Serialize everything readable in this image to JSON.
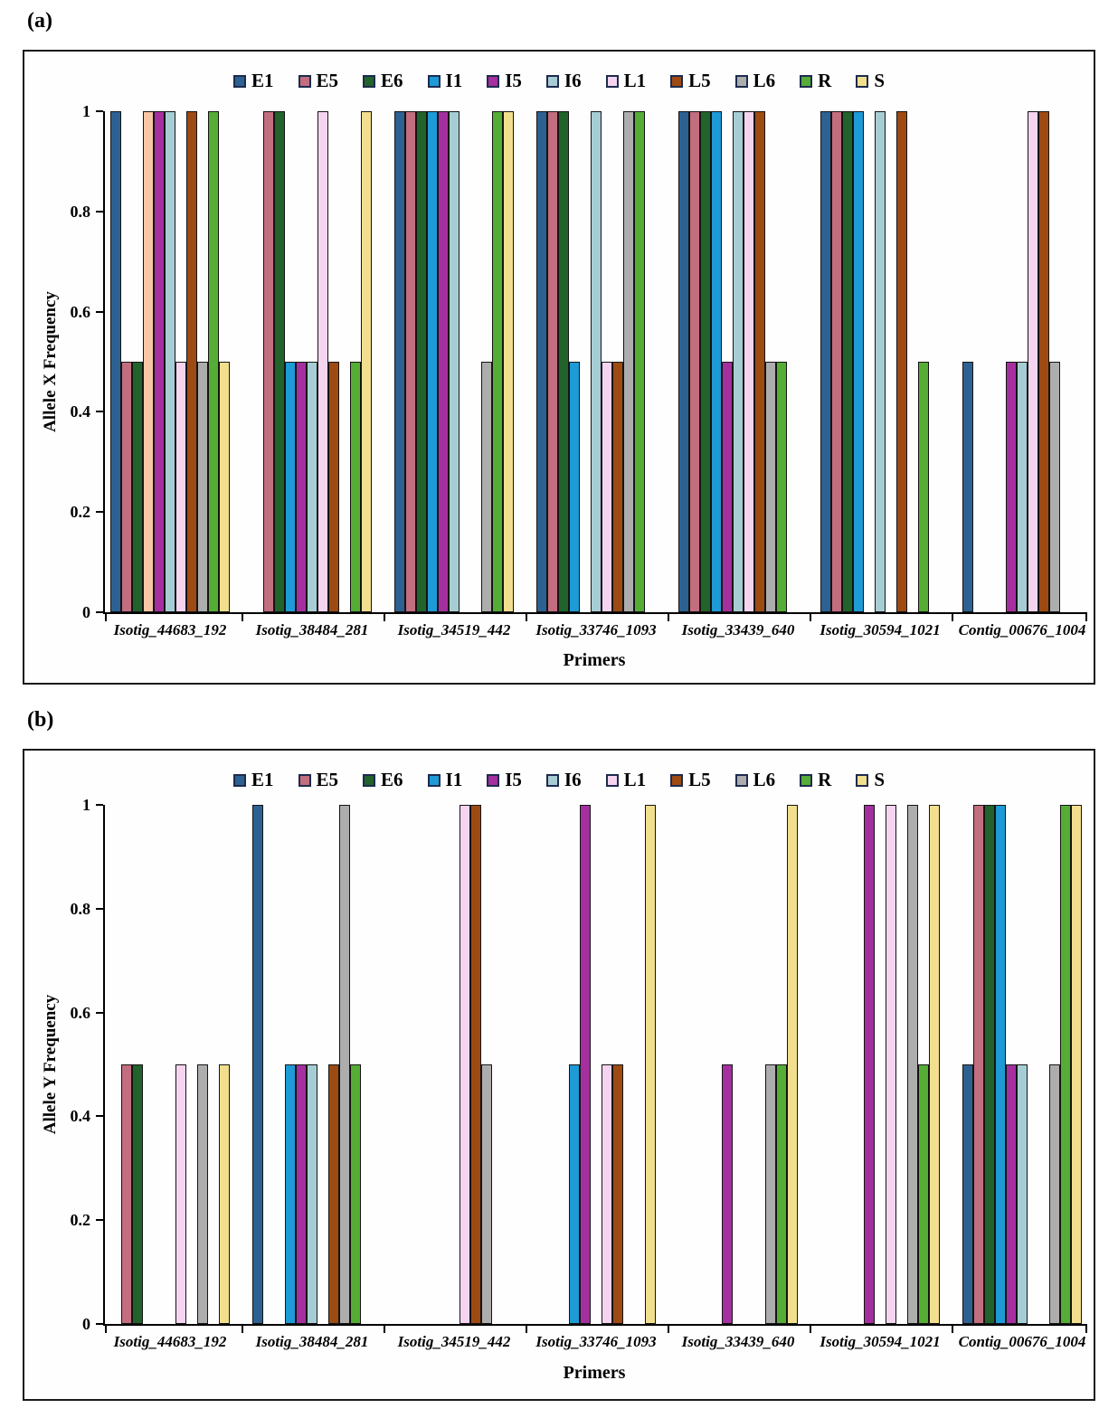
{
  "chart_data": [
    {
      "type": "bar",
      "panel_label": "(a)",
      "xlabel": "Primers",
      "ylabel": "Allele X Frequency",
      "ylim": [
        0,
        1
      ],
      "y_ticks": [
        "0",
        "0.2",
        "0.4",
        "0.6",
        "0.8",
        "1"
      ],
      "grid": false,
      "legend_position": "top",
      "categories": [
        "Isotig_44683_192",
        "Isotig_38484_281",
        "Isotig_34519_442",
        "Isotig_33746_1093",
        "Isotig_33439_640",
        "Isotig_30594_1021",
        "Contig_00676_1004"
      ],
      "series": [
        {
          "name": "E1",
          "color": "#2D6191",
          "values": [
            1,
            0,
            1,
            1,
            1,
            1,
            0.5
          ]
        },
        {
          "name": "E5",
          "color": "#C26E7F",
          "values": [
            0.5,
            1,
            1,
            1,
            1,
            1,
            0
          ]
        },
        {
          "name": "E6",
          "color": "#21632B",
          "values": [
            0.5,
            1,
            1,
            1,
            1,
            1,
            0
          ]
        },
        {
          "name": "I1",
          "color": "#1E9AD6",
          "values": [
            1,
            0.5,
            1,
            0.5,
            1,
            1,
            0
          ]
        },
        {
          "name": "I5",
          "color": "#A52F9E",
          "values": [
            1,
            0.5,
            1,
            0,
            0.5,
            0,
            0.5
          ]
        },
        {
          "name": "I6",
          "color": "#A7CDD4",
          "values": [
            1,
            0.5,
            1,
            1,
            1,
            1,
            0.5
          ]
        },
        {
          "name": "L1",
          "color": "#F5D4F0",
          "values": [
            0.5,
            1,
            0,
            0.5,
            1,
            0,
            1
          ]
        },
        {
          "name": "L5",
          "color": "#9D4A13",
          "values": [
            1,
            0.5,
            0,
            0.5,
            1,
            1,
            1
          ]
        },
        {
          "name": "L6",
          "color": "#ADADAD",
          "values": [
            0.5,
            0,
            0.5,
            1,
            0.5,
            0,
            0.5
          ]
        },
        {
          "name": "R",
          "color": "#55AD36",
          "values": [
            1,
            0.5,
            1,
            1,
            0.5,
            0.5,
            0
          ]
        },
        {
          "name": "S",
          "color": "#F1DF8E",
          "values": [
            0.5,
            1,
            1,
            0,
            0,
            0,
            0
          ]
        }
      ],
      "bar_color_overrides": [
        {
          "series": "I1",
          "category": "Isotig_44683_192",
          "color": "#F7C6A4"
        }
      ]
    },
    {
      "type": "bar",
      "panel_label": "(b)",
      "xlabel": "Primers",
      "ylabel": "Allele Y Frequency",
      "ylim": [
        0,
        1
      ],
      "y_ticks": [
        "0",
        "0.2",
        "0.4",
        "0.6",
        "0.8",
        "1"
      ],
      "grid": false,
      "legend_position": "top",
      "categories": [
        "Isotig_44683_192",
        "Isotig_38484_281",
        "Isotig_34519_442",
        "Isotig_33746_1093",
        "Isotig_33439_640",
        "Isotig_30594_1021",
        "Contig_00676_1004"
      ],
      "series": [
        {
          "name": "E1",
          "color": "#2D6191",
          "values": [
            0,
            1,
            0,
            0,
            0,
            0,
            0.5
          ]
        },
        {
          "name": "E5",
          "color": "#C26E7F",
          "values": [
            0.5,
            0,
            0,
            0,
            0,
            0,
            1
          ]
        },
        {
          "name": "E6",
          "color": "#21632B",
          "values": [
            0.5,
            0,
            0,
            0,
            0,
            0,
            1
          ]
        },
        {
          "name": "I1",
          "color": "#1E9AD6",
          "values": [
            0,
            0.5,
            0,
            0.5,
            0,
            0,
            1
          ]
        },
        {
          "name": "I5",
          "color": "#A52F9E",
          "values": [
            0,
            0.5,
            0,
            1,
            0.5,
            1,
            0.5
          ]
        },
        {
          "name": "I6",
          "color": "#A7CDD4",
          "values": [
            0,
            0.5,
            0,
            0,
            0,
            0,
            0.5
          ]
        },
        {
          "name": "L1",
          "color": "#F5D4F0",
          "values": [
            0.5,
            0,
            1,
            0.5,
            0,
            1,
            0
          ]
        },
        {
          "name": "L5",
          "color": "#9D4A13",
          "values": [
            0,
            0.5,
            1,
            0.5,
            0,
            0,
            0
          ]
        },
        {
          "name": "L6",
          "color": "#ADADAD",
          "values": [
            0.5,
            1,
            0.5,
            0,
            0.5,
            1,
            0.5
          ]
        },
        {
          "name": "R",
          "color": "#55AD36",
          "values": [
            0,
            0.5,
            0,
            0,
            0.5,
            0.5,
            1
          ]
        },
        {
          "name": "S",
          "color": "#F1DF8E",
          "values": [
            0.5,
            0,
            0,
            1,
            1,
            1,
            1
          ]
        }
      ],
      "bar_color_overrides": []
    }
  ]
}
